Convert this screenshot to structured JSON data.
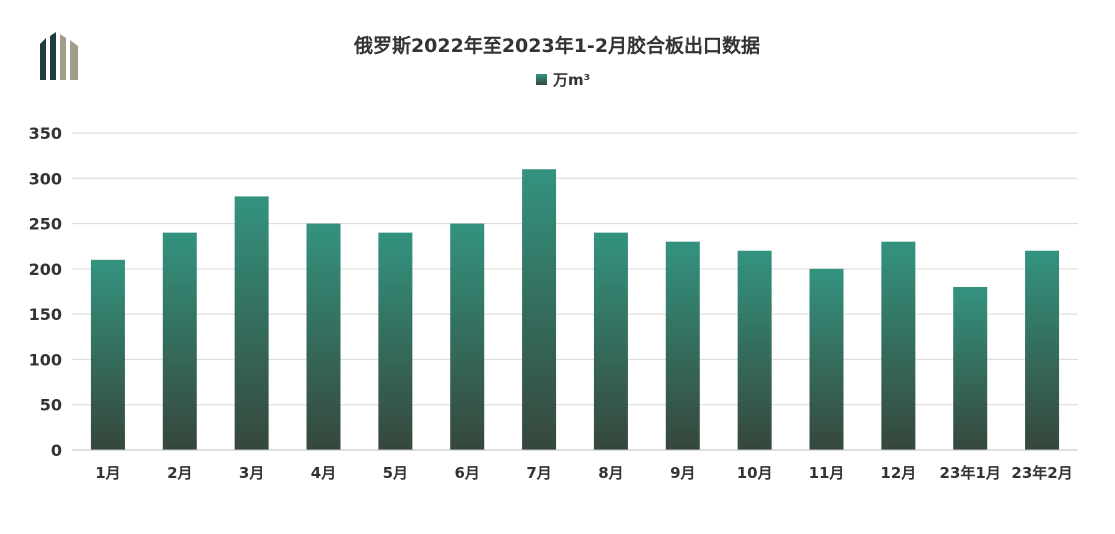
{
  "chart_data": {
    "type": "bar",
    "title": "俄罗斯2022年至2023年1-2月胶合板出口数据",
    "legend": {
      "label": "万m³",
      "position": "top-center"
    },
    "categories": [
      "1月",
      "2月",
      "3月",
      "4月",
      "5月",
      "6月",
      "7月",
      "8月",
      "9月",
      "10月",
      "11月",
      "12月",
      "23年1月",
      "23年2月"
    ],
    "series": [
      {
        "name": "万m³",
        "values": [
          210,
          240,
          280,
          250,
          240,
          250,
          310,
          240,
          230,
          220,
          200,
          230,
          180,
          220
        ]
      }
    ],
    "ylim": [
      0,
      350
    ],
    "yticks": [
      0,
      50,
      100,
      150,
      200,
      250,
      300,
      350
    ],
    "grid": true,
    "colors": {
      "bar_top": "#33937f",
      "bar_bottom": "#36473c",
      "logo_dark": "#1f3d3f",
      "logo_light": "#a39c8b"
    }
  }
}
